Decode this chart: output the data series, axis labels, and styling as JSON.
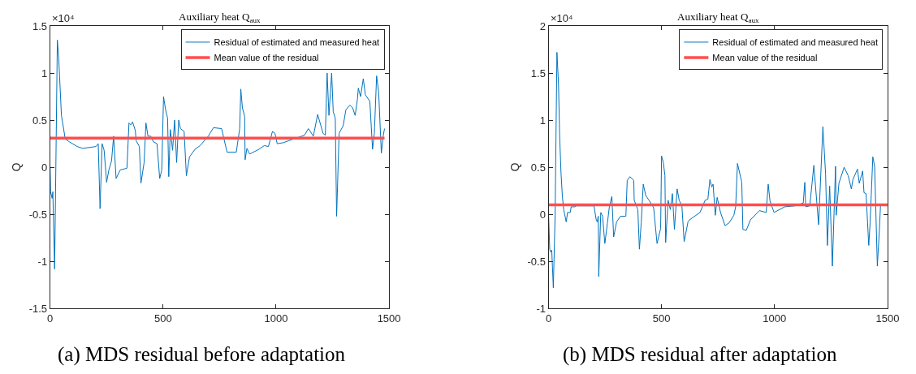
{
  "chart_data": [
    {
      "type": "line",
      "title": "Auxiliary heat Q$_{aux}$",
      "ylabel": "Q",
      "annotations": [
        "×10⁴",
        "(a) MDS residual before adaptation"
      ],
      "xlim": [
        0,
        1500
      ],
      "xticks": [
        0,
        500,
        1000,
        1500
      ],
      "ylim": [
        -1.5,
        1.5
      ],
      "yticks": [
        -1.5,
        -1,
        -0.5,
        0,
        0.5,
        1,
        1.5
      ],
      "legend": "top right",
      "series": [
        {
          "name": "Residual of estimated and measured heat",
          "color": "#0072bd",
          "x": [
            0,
            2,
            9,
            12,
            20,
            32,
            38,
            50,
            67,
            85,
            120,
            144,
            203,
            213,
            221,
            230,
            239,
            250,
            260,
            272,
            281,
            292,
            310,
            340,
            349,
            357,
            365,
            377,
            381,
            395,
            402,
            416,
            424,
            433,
            445,
            457,
            473,
            485,
            494,
            502,
            511,
            520,
            525,
            532,
            542,
            551,
            560,
            569,
            577,
            593,
            603,
            617,
            641,
            664,
            700,
            723,
            759,
            783,
            824,
            839,
            844,
            851,
            861,
            863,
            871,
            883,
            924,
            948,
            966,
            984,
            995,
            1005,
            1031,
            1066,
            1102,
            1126,
            1143,
            1165,
            1184,
            1208,
            1218,
            1226,
            1234,
            1246,
            1253,
            1262,
            1268,
            1279,
            1297,
            1309,
            1327,
            1339,
            1350,
            1360,
            1364,
            1374,
            1386,
            1395,
            1415,
            1427,
            1435,
            1445,
            1454,
            1466,
            1474,
            1480
          ],
          "values": [
            0,
            -0.26,
            -0.33,
            -0.26,
            -1.08,
            1.35,
            1.16,
            0.55,
            0.3,
            0.27,
            0.22,
            0.2,
            0.22,
            0.25,
            -0.44,
            0.25,
            0.18,
            -0.16,
            -0.03,
            0.07,
            0.33,
            -0.12,
            -0.03,
            -0.01,
            0.47,
            0.45,
            0.48,
            0.39,
            0.28,
            0.22,
            -0.17,
            0.05,
            0.47,
            0.33,
            0.33,
            0.27,
            0.25,
            -0.12,
            -0.03,
            0.75,
            0.61,
            0.52,
            -0.1,
            0.4,
            0.18,
            0.5,
            0.05,
            0.5,
            0.41,
            0.38,
            -0.09,
            0.11,
            0.19,
            0.23,
            0.33,
            0.42,
            0.41,
            0.16,
            0.16,
            0.41,
            0.83,
            0.63,
            0.54,
            0.08,
            0.2,
            0.14,
            0.19,
            0.23,
            0.22,
            0.38,
            0.36,
            0.25,
            0.26,
            0.29,
            0.32,
            0.34,
            0.41,
            0.33,
            0.56,
            0.36,
            0.34,
            1.0,
            0.55,
            1.0,
            0.59,
            0.52,
            -0.52,
            0.36,
            0.44,
            0.61,
            0.66,
            0.63,
            0.55,
            0.72,
            0.84,
            0.75,
            0.94,
            0.77,
            0.7,
            0.19,
            0.36,
            0.97,
            0.8,
            0.15,
            0.33,
            0.41
          ]
        },
        {
          "name": "Mean value of the residual",
          "color": "#ff4d4d",
          "x": [
            0,
            1480
          ],
          "values": [
            0.31,
            0.31
          ]
        }
      ]
    },
    {
      "type": "line",
      "title": "Auxiliary heat Q$_{aux}$",
      "ylabel": "Q",
      "annotations": [
        "×10⁴",
        "(b) MDS residual after adaptation"
      ],
      "xlim": [
        0,
        1500
      ],
      "xticks": [
        0,
        500,
        1000,
        1500
      ],
      "ylim": [
        -1,
        2
      ],
      "yticks": [
        -1,
        -0.5,
        0,
        0.5,
        1,
        1.5,
        2
      ],
      "legend": "top right",
      "series": [
        {
          "name": "Residual of estimated and measured heat",
          "color": "#0072bd",
          "x": [
            0,
            5,
            9,
            14,
            21,
            29,
            37,
            44,
            49,
            55,
            61,
            67,
            78,
            84,
            96,
            100,
            117,
            122,
            141,
            201,
            211,
            215,
            220,
            222,
            231,
            239,
            249,
            260,
            269,
            280,
            288,
            301,
            318,
            342,
            348,
            360,
            377,
            379,
            395,
            402,
            410,
            419,
            430,
            447,
            465,
            480,
            496,
            500,
            508,
            515,
            518,
            529,
            539,
            548,
            557,
            569,
            578,
            590,
            600,
            617,
            623,
            670,
            693,
            705,
            714,
            722,
            728,
            738,
            746,
            761,
            781,
            799,
            820,
            828,
            836,
            855,
            860,
            875,
            893,
            933,
            963,
            972,
            980,
            998,
            1045,
            1091,
            1127,
            1134,
            1138,
            1156,
            1174,
            1195,
            1214,
            1226,
            1234,
            1244,
            1256,
            1270,
            1273,
            1285,
            1308,
            1326,
            1340,
            1347,
            1367,
            1375,
            1390,
            1396,
            1405,
            1417,
            1423,
            1435,
            1443,
            1455,
            1464,
            1469
          ],
          "values": [
            0,
            -0.37,
            -0.4,
            -0.38,
            -0.78,
            0,
            1.72,
            1.38,
            0.83,
            0.44,
            0.19,
            0.05,
            -0.08,
            0.02,
            0.02,
            0.08,
            0.08,
            0.09,
            0.09,
            0.09,
            -0.06,
            -0.08,
            -0.02,
            -0.66,
            0.02,
            -0.02,
            -0.31,
            -0.1,
            0.08,
            0.19,
            -0.24,
            -0.08,
            -0.02,
            -0.02,
            0.36,
            0.4,
            0.36,
            0.15,
            0.05,
            -0.37,
            -0.09,
            0.32,
            0.2,
            0.14,
            0.07,
            -0.31,
            -0.15,
            0.62,
            0.55,
            0.41,
            -0.3,
            0.15,
            0.05,
            0.22,
            -0.16,
            0.27,
            0.15,
            0.09,
            -0.29,
            -0.08,
            -0.06,
            0.02,
            0.15,
            0.16,
            0.37,
            0.29,
            0.32,
            -0.01,
            0.18,
            0.02,
            -0.12,
            -0.09,
            -0.01,
            0.08,
            0.54,
            0.34,
            -0.16,
            -0.17,
            -0.06,
            0.04,
            0.02,
            0.32,
            0.14,
            0.02,
            0.08,
            0.09,
            0.12,
            0.34,
            0.08,
            0.09,
            0.52,
            -0.11,
            0.93,
            0.43,
            -0.33,
            0.3,
            -0.55,
            0.51,
            -0.01,
            0.33,
            0.5,
            0.41,
            0.27,
            0.37,
            0.48,
            0.33,
            0.46,
            0.23,
            0.22,
            -0.33,
            -0.09,
            0.61,
            0.51,
            -0.55,
            -0.17,
            0.09
          ]
        },
        {
          "name": "Mean value of the residual",
          "color": "#ff4d4d",
          "x": [
            0,
            1500
          ],
          "values": [
            0.1,
            0.1
          ]
        }
      ]
    }
  ]
}
